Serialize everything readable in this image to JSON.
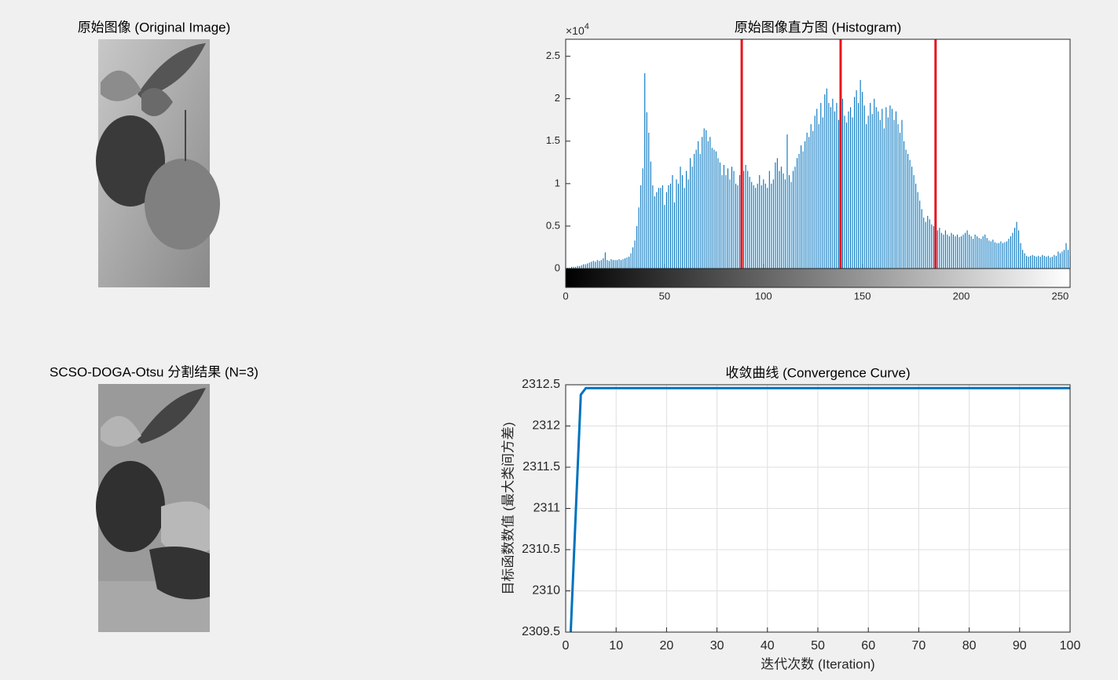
{
  "images": [
    {
      "title": "原始图像 (Original Image)"
    },
    {
      "title": "SCSO-DOGA-Otsu 分割结果 (N=3)"
    }
  ],
  "chart_data": [
    {
      "type": "bar",
      "title": "原始图像直方图 (Histogram)",
      "x": [
        0,
        1,
        2,
        3,
        4,
        5,
        6,
        7,
        8,
        9,
        10,
        11,
        12,
        13,
        14,
        15,
        16,
        17,
        18,
        19,
        20,
        21,
        22,
        23,
        24,
        25,
        26,
        27,
        28,
        29,
        30,
        31,
        32,
        33,
        34,
        35,
        36,
        37,
        38,
        39,
        40,
        41,
        42,
        43,
        44,
        45,
        46,
        47,
        48,
        49,
        50,
        51,
        52,
        53,
        54,
        55,
        56,
        57,
        58,
        59,
        60,
        61,
        62,
        63,
        64,
        65,
        66,
        67,
        68,
        69,
        70,
        71,
        72,
        73,
        74,
        75,
        76,
        77,
        78,
        79,
        80,
        81,
        82,
        83,
        84,
        85,
        86,
        87,
        88,
        89,
        90,
        91,
        92,
        93,
        94,
        95,
        96,
        97,
        98,
        99,
        100,
        101,
        102,
        103,
        104,
        105,
        106,
        107,
        108,
        109,
        110,
        111,
        112,
        113,
        114,
        115,
        116,
        117,
        118,
        119,
        120,
        121,
        122,
        123,
        124,
        125,
        126,
        127,
        128,
        129,
        130,
        131,
        132,
        133,
        134,
        135,
        136,
        137,
        138,
        139,
        140,
        141,
        142,
        143,
        144,
        145,
        146,
        147,
        148,
        149,
        150,
        151,
        152,
        153,
        154,
        155,
        156,
        157,
        158,
        159,
        160,
        161,
        162,
        163,
        164,
        165,
        166,
        167,
        168,
        169,
        170,
        171,
        172,
        173,
        174,
        175,
        176,
        177,
        178,
        179,
        180,
        181,
        182,
        183,
        184,
        185,
        186,
        187,
        188,
        189,
        190,
        191,
        192,
        193,
        194,
        195,
        196,
        197,
        198,
        199,
        200,
        201,
        202,
        203,
        204,
        205,
        206,
        207,
        208,
        209,
        210,
        211,
        212,
        213,
        214,
        215,
        216,
        217,
        218,
        219,
        220,
        221,
        222,
        223,
        224,
        225,
        226,
        227,
        228,
        229,
        230,
        231,
        232,
        233,
        234,
        235,
        236,
        237,
        238,
        239,
        240,
        241,
        242,
        243,
        244,
        245,
        246,
        247,
        248,
        249,
        250,
        251,
        252,
        253,
        254,
        255
      ],
      "values": [
        0.01,
        0.01,
        0.01,
        0.02,
        0.02,
        0.02,
        0.03,
        0.03,
        0.04,
        0.05,
        0.05,
        0.06,
        0.07,
        0.08,
        0.09,
        0.08,
        0.1,
        0.09,
        0.1,
        0.12,
        0.19,
        0.1,
        0.09,
        0.11,
        0.1,
        0.1,
        0.1,
        0.11,
        0.1,
        0.11,
        0.12,
        0.13,
        0.14,
        0.18,
        0.25,
        0.33,
        0.5,
        0.72,
        0.98,
        1.18,
        2.3,
        1.84,
        1.6,
        1.26,
        0.98,
        0.85,
        0.9,
        0.95,
        0.95,
        0.98,
        0.75,
        0.9,
        0.98,
        1.0,
        1.1,
        0.78,
        1.05,
        1.0,
        1.2,
        1.1,
        0.95,
        1.15,
        1.05,
        1.3,
        1.2,
        1.35,
        1.4,
        1.5,
        1.35,
        1.55,
        1.65,
        1.63,
        1.5,
        1.55,
        1.42,
        1.4,
        1.38,
        1.3,
        1.25,
        1.1,
        1.22,
        1.1,
        1.18,
        1.05,
        1.2,
        1.15,
        1.0,
        0.98,
        1.1,
        0.95,
        1.15,
        1.22,
        1.15,
        1.08,
        1.02,
        0.98,
        0.95,
        1.0,
        1.1,
        0.98,
        1.05,
        1.0,
        0.95,
        1.15,
        1.0,
        1.05,
        1.25,
        1.3,
        1.15,
        1.2,
        1.12,
        1.05,
        1.58,
        1.1,
        1.02,
        1.15,
        1.2,
        1.3,
        1.35,
        1.45,
        1.38,
        1.5,
        1.6,
        1.55,
        1.7,
        1.62,
        1.8,
        1.88,
        1.7,
        1.95,
        1.78,
        2.05,
        2.12,
        1.95,
        1.9,
        2.0,
        1.85,
        1.95,
        1.75,
        1.92,
        2.0,
        1.8,
        1.72,
        1.85,
        1.9,
        1.78,
        2.02,
        2.1,
        1.95,
        2.22,
        2.08,
        1.92,
        1.7,
        1.8,
        1.95,
        1.82,
        2.0,
        1.9,
        1.85,
        1.75,
        1.88,
        1.65,
        1.9,
        1.78,
        1.92,
        1.88,
        1.75,
        1.85,
        1.7,
        1.6,
        1.75,
        1.5,
        1.4,
        1.35,
        1.28,
        1.2,
        1.1,
        1.0,
        0.9,
        0.8,
        0.7,
        0.6,
        0.55,
        0.62,
        0.58,
        0.52,
        0.5,
        0.55,
        0.45,
        0.48,
        0.42,
        0.4,
        0.45,
        0.4,
        0.38,
        0.42,
        0.4,
        0.38,
        0.4,
        0.37,
        0.38,
        0.4,
        0.42,
        0.45,
        0.4,
        0.38,
        0.35,
        0.4,
        0.38,
        0.36,
        0.35,
        0.38,
        0.4,
        0.36,
        0.33,
        0.32,
        0.34,
        0.31,
        0.3,
        0.3,
        0.32,
        0.3,
        0.31,
        0.32,
        0.35,
        0.38,
        0.42,
        0.48,
        0.55,
        0.45,
        0.3,
        0.22,
        0.18,
        0.15,
        0.14,
        0.15,
        0.16,
        0.15,
        0.14,
        0.15,
        0.14,
        0.16,
        0.15,
        0.14,
        0.15,
        0.13,
        0.14,
        0.16,
        0.15,
        0.2,
        0.18,
        0.2,
        0.22,
        0.3,
        0.22,
        0.15
      ],
      "color": "#0072bd",
      "xlim": [
        0,
        255
      ],
      "xticks": [
        0,
        50,
        100,
        150,
        200,
        250
      ],
      "ylim": [
        0,
        2.7
      ],
      "yticks": [
        0,
        0.5,
        1,
        1.5,
        2,
        2.5
      ],
      "y_multiplier": "×10",
      "y_exponent": 4,
      "thresholds": [
        89,
        139,
        187
      ],
      "threshold_color": "#e8141c",
      "grid": false,
      "colorbar": true
    },
    {
      "type": "line",
      "title": "收敛曲线 (Convergence Curve)",
      "xlabel": "迭代次数 (Iteration)",
      "ylabel": "目标函数数值 (最大类间方差)",
      "x": [
        1,
        2,
        3,
        4,
        5,
        6,
        7,
        8,
        9,
        10,
        11,
        12,
        13,
        14,
        15,
        16,
        17,
        18,
        19,
        20,
        21,
        22,
        23,
        24,
        25,
        26,
        27,
        28,
        29,
        30,
        31,
        32,
        33,
        34,
        35,
        36,
        37,
        38,
        39,
        40,
        41,
        42,
        43,
        44,
        45,
        46,
        47,
        48,
        49,
        50,
        51,
        52,
        53,
        54,
        55,
        56,
        57,
        58,
        59,
        60,
        61,
        62,
        63,
        64,
        65,
        66,
        67,
        68,
        69,
        70,
        71,
        72,
        73,
        74,
        75,
        76,
        77,
        78,
        79,
        80,
        81,
        82,
        83,
        84,
        85,
        86,
        87,
        88,
        89,
        90,
        91,
        92,
        93,
        94,
        95,
        96,
        97,
        98,
        99,
        100
      ],
      "values": [
        2309.5,
        2310.95,
        2312.38,
        2312.46,
        2312.46,
        2312.46,
        2312.46,
        2312.46,
        2312.46,
        2312.46,
        2312.46,
        2312.46,
        2312.46,
        2312.46,
        2312.46,
        2312.46,
        2312.46,
        2312.46,
        2312.46,
        2312.46,
        2312.46,
        2312.46,
        2312.46,
        2312.46,
        2312.46,
        2312.46,
        2312.46,
        2312.46,
        2312.46,
        2312.46,
        2312.46,
        2312.46,
        2312.46,
        2312.46,
        2312.46,
        2312.46,
        2312.46,
        2312.46,
        2312.46,
        2312.46,
        2312.46,
        2312.46,
        2312.46,
        2312.46,
        2312.46,
        2312.46,
        2312.46,
        2312.46,
        2312.46,
        2312.46,
        2312.46,
        2312.46,
        2312.46,
        2312.46,
        2312.46,
        2312.46,
        2312.46,
        2312.46,
        2312.46,
        2312.46,
        2312.46,
        2312.46,
        2312.46,
        2312.46,
        2312.46,
        2312.46,
        2312.46,
        2312.46,
        2312.46,
        2312.46,
        2312.46,
        2312.46,
        2312.46,
        2312.46,
        2312.46,
        2312.46,
        2312.46,
        2312.46,
        2312.46,
        2312.46,
        2312.46,
        2312.46,
        2312.46,
        2312.46,
        2312.46,
        2312.46,
        2312.46,
        2312.46,
        2312.46,
        2312.46,
        2312.46,
        2312.46,
        2312.46,
        2312.46,
        2312.46,
        2312.46,
        2312.46,
        2312.46,
        2312.46,
        2312.46
      ],
      "color": "#0072bd",
      "xlim": [
        0,
        100
      ],
      "xticks": [
        0,
        10,
        20,
        30,
        40,
        50,
        60,
        70,
        80,
        90,
        100
      ],
      "ylim": [
        2309.5,
        2312.5
      ],
      "yticks": [
        2309.5,
        2310,
        2310.5,
        2311,
        2311.5,
        2312,
        2312.5
      ],
      "grid": true
    }
  ]
}
